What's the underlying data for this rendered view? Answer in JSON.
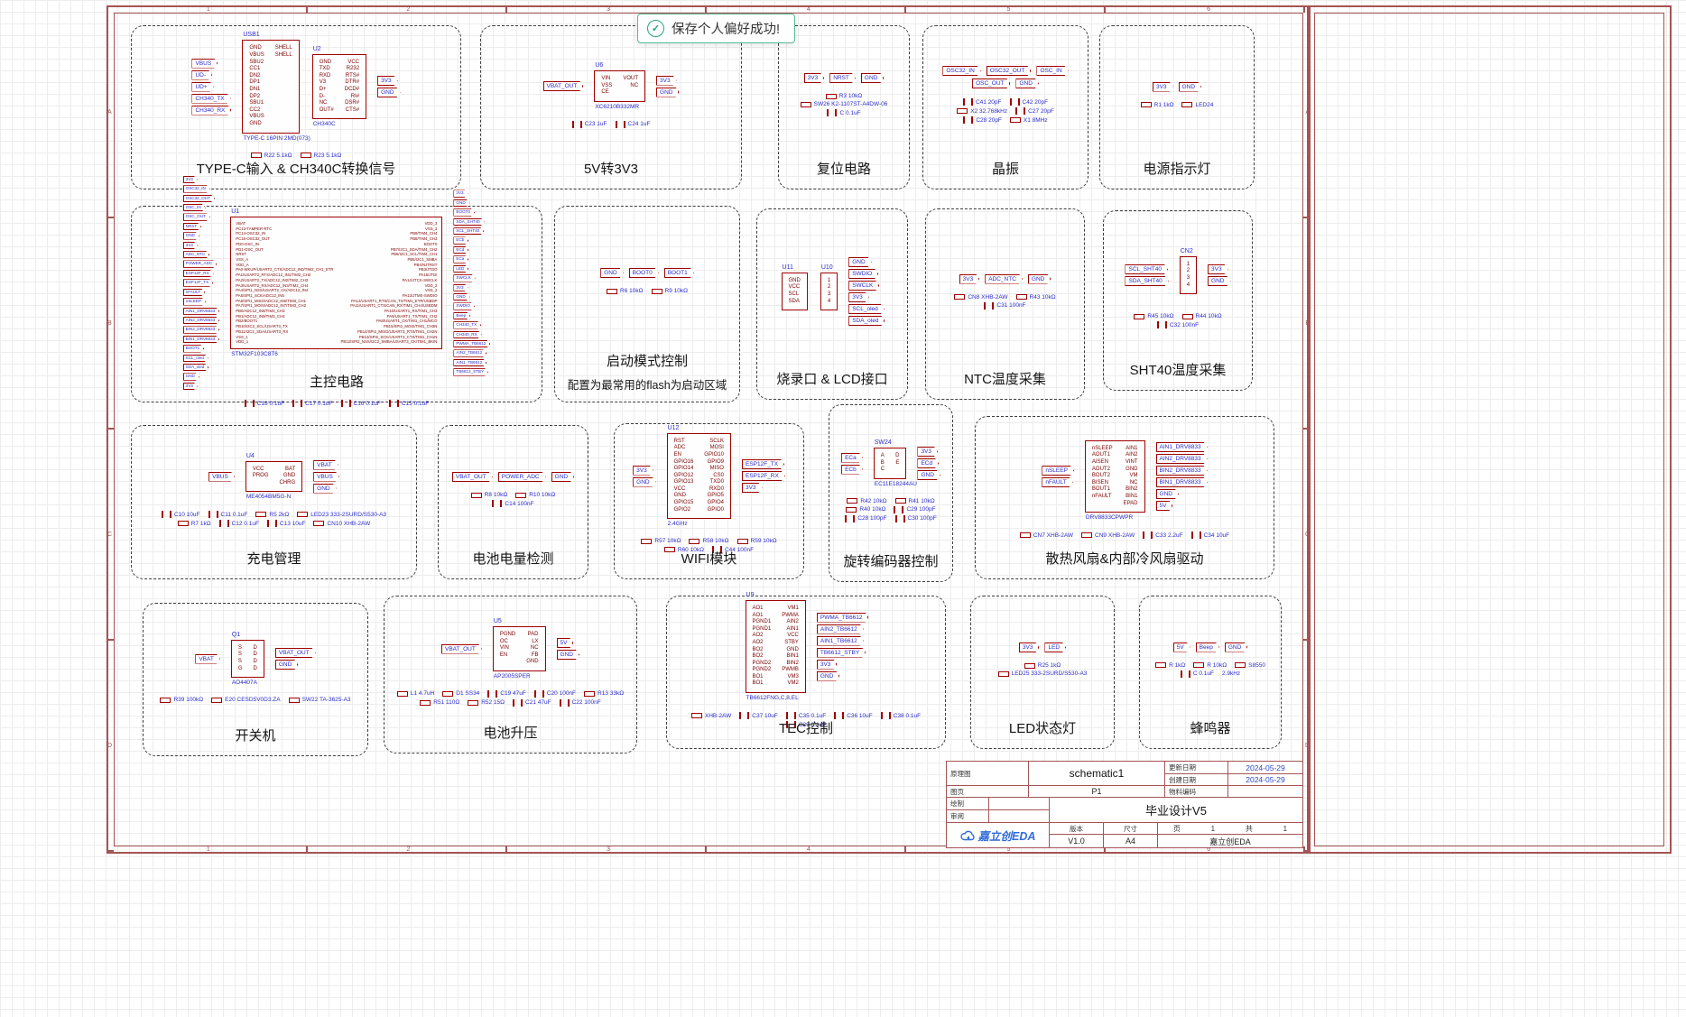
{
  "toast": {
    "message": "保存个人偏好成功!",
    "icon": "check-circle"
  },
  "colors": {
    "frame_red": "#a45454",
    "symbol_red": "#a00000",
    "pin_red": "#7b0000",
    "net_blue": "#2b2bcc",
    "wire_green": "#007a00",
    "toast_green": "#27a27f",
    "logo_blue": "#2f6bd8",
    "block_border": "#3d3d3d"
  },
  "frame": {
    "columns": [
      "1",
      "2",
      "3",
      "4",
      "5",
      "6"
    ],
    "rows": [
      "A",
      "B",
      "C",
      "D"
    ]
  },
  "title_block": {
    "schematic_label": "原理图",
    "schematic_value": "schematic1",
    "updated_label": "更新日期",
    "updated_value": "2024-05-29",
    "created_label": "创建日期",
    "created_value": "2024-05-29",
    "sheet_label": "图页",
    "sheet_value": "P1",
    "material_label": "物料编码",
    "material_value": "",
    "draw_label": "绘制",
    "draw_value": "",
    "review_label": "审阅",
    "review_value": "",
    "project_title": "毕业设计V5",
    "version_label": "版本",
    "version_value": "V1.0",
    "size_label": "尺寸",
    "size_value": "A4",
    "page_label": "页",
    "page_value": "1",
    "total_label": "共",
    "total_value": "1",
    "vendor": "嘉立创EDA",
    "logo_text": "嘉立创EDA"
  },
  "blocks": [
    {
      "id": "typec",
      "title": "TYPE-C输入 & CH340C转换信号",
      "chips": [
        {
          "refdes": "USB1",
          "part": "TYPE-C 16PIN 2MD(073)",
          "left": [
            "GND",
            "VBUS",
            "SBU2",
            "CC1",
            "DN2",
            "DP1",
            "DN1",
            "DP2",
            "SBU1",
            "CC2",
            "VBUS",
            "GND"
          ],
          "right": [
            "SHELL",
            "SHELL"
          ]
        },
        {
          "refdes": "U2",
          "part": "CH340C",
          "left": [
            "GND",
            "TXD",
            "RXD",
            "V3",
            "D+",
            "D-",
            "NC",
            "OUT#"
          ],
          "right": [
            "VCC",
            "R232",
            "RTS#",
            "DTR#",
            "DCD#",
            "RI#",
            "DSR#",
            "CTS#"
          ]
        }
      ],
      "nets_left": [
        "VBUS",
        "UD-",
        "UD+",
        "CH340_TX",
        "CH340_RX"
      ],
      "nets_right": [
        "3V3",
        "GND"
      ],
      "parts": [
        "R22 5.1kΩ",
        "R23 5.1kΩ"
      ]
    },
    {
      "id": "ldo",
      "title": "5V转3V3",
      "chips": [
        {
          "refdes": "U6",
          "part": "XC6210B332MR",
          "left": [
            "VIN",
            "VSS",
            "CE"
          ],
          "right": [
            "VOUT",
            "NC"
          ]
        }
      ],
      "nets_left": [
        "VBAT_OUT"
      ],
      "nets_right": [
        "3V3",
        "GND"
      ],
      "parts": [
        "C23 1uF",
        "C24 1uF"
      ]
    },
    {
      "id": "reset",
      "title": "复位电路",
      "chips": [],
      "nets_left": [],
      "nets_right": [
        "3V3",
        "NRST",
        "GND"
      ],
      "parts": [
        "R3 10kΩ",
        "SW26 K2-1107ST-A4DW-06",
        "C 0.1uF"
      ]
    },
    {
      "id": "xtal",
      "title": "晶振",
      "chips": [],
      "nets_left": [],
      "nets_right": [
        "OSC32_IN",
        "OSC32_OUT",
        "OSC_IN",
        "OSC_OUT",
        "GND"
      ],
      "parts": [
        "C41 20pF",
        "C42 20pF",
        "X2 32.768kHz",
        "C27 20pF",
        "C28 20pF",
        "X1 8MHz"
      ]
    },
    {
      "id": "pwrled",
      "title": "电源指示灯",
      "chips": [],
      "nets_left": [],
      "nets_right": [
        "3V3",
        "GND"
      ],
      "parts": [
        "R1 1kΩ",
        "LED24"
      ]
    },
    {
      "id": "mcu",
      "title": "主控电路",
      "chips": [
        {
          "refdes": "U1",
          "part": "STM32F103C8T6",
          "left": [
            "VBAT",
            "PC13-TAMPER-RTC",
            "PC14-OSC32_IN",
            "PC15-OSC32_OUT",
            "PD0-OSC_IN",
            "PD1-OSC_OUT",
            "NRST",
            "VSS_A",
            "VDD_A",
            "PA0-WKUP/USART2_CTS/ADC12_IN0/TIM2_CH1_ETR",
            "PA1/USART2_RTS/ADC12_IN1/TIM2_CH2",
            "PA2/USART2_TX/ADC12_IN2/TIM2_CH3",
            "PA3/USART2_RX/ADC12_IN3/TIM2_CH4",
            "PA4/SPI1_NSS/USART2_CK/ADC12_IN4",
            "PA5/SPI1_SCK/ADC12_IN5",
            "PA6/SPI1_MISO/ADC12_IN6/TIM3_CH1",
            "PA7/SPI1_MOSI/ADC12_IN7/TIM3_CH2",
            "PB0/ADC12_IN8/TIM3_CH3",
            "PB1/ADC12_IN9/TIM3_CH4",
            "PB2/BOOT1",
            "PB10/I2C2_SCL/USART3_TX",
            "PB11/I2C2_SDA/USART3_RX",
            "VSS_1",
            "VDD_1"
          ],
          "right": [
            "VDD_3",
            "VSS_3",
            "PB9/TIM4_CH4",
            "PB8/TIM4_CH3",
            "BOOT0",
            "PB7/I2C1_SDA/TIM4_CH2",
            "PB6/I2C1_SCL/TIM4_CH1",
            "PB5/I2C1_SMBA",
            "PB4/NJTRST",
            "PB3/JTDO",
            "PA15/JTDI",
            "PA14/JTCK-SWCLK",
            "VDD_2",
            "VSS_2",
            "PA13/JTMS-SWDIO",
            "PA12/USART1_RTS/CAN_TX/TIM1_ETR/USBDP",
            "PA11/USART1_CTS/CAN_RX/TIM1_CH4/USBDM",
            "PA10/USART1_RX/TIM1_CH3",
            "PA9/USART1_TX/TIM1_CH2",
            "PA8/USART1_CK/TIM1_CH1/MCO",
            "PB15/SPI2_MOSI/TIM1_CH3N",
            "PB14/SPI2_MISO/USART3_RTS/TIM1_CH2N",
            "PB13/SPI2_SCK/USART3_CTS/TIM1_CH1N",
            "PB12/SPI2_NSS/I2C2_SMBA/USART3_CK/TIM1_BKIN"
          ]
        }
      ],
      "nets_left": [
        "3V3",
        "OSC32_IN",
        "OSC32_OUT",
        "OSC_IN",
        "OSC_OUT",
        "NRST",
        "GND",
        "3V3",
        "ADC_NTC",
        "POWER_ADC",
        "ESP12F_RX",
        "ESP12F_TX",
        "nFAULT",
        "nSLEEP",
        "AIN1_DRV8833",
        "AIN2_DRV8833",
        "BIN2_DRV8833",
        "BIN1_DRV8833",
        "BOOT1",
        "SCL_oled",
        "SDA_oled",
        "GND",
        "3V3"
      ],
      "nets_right": [
        "3V3",
        "GND",
        "BOOT0",
        "SDA_SHT40",
        "SCL_SHT40",
        "ECb",
        "ECd",
        "ECa",
        "LED",
        "SWCLK",
        "3V3",
        "GND",
        "SWDIO",
        "Beep",
        "CH340_TX",
        "CH340_RX",
        "PWMA_TB6612",
        "AIN2_TB6612",
        "AIN1_TB6612",
        "TB6612_STBY"
      ],
      "parts": [
        "C18 0.1uF",
        "C17 0.1uF",
        "C16 0.1uF",
        "C15 0.1uF"
      ]
    },
    {
      "id": "boot",
      "title": "启动模式控制",
      "subtitle": "配置为最常用的flash为启动区域",
      "chips": [],
      "nets_left": [],
      "nets_right": [
        "GND",
        "BOOT0",
        "BOOT1"
      ],
      "parts": [
        "R6 10kΩ",
        "R9 10kΩ"
      ]
    },
    {
      "id": "prog",
      "title": "烧录口 & LCD接口",
      "chips": [
        {
          "refdes": "U11",
          "part": "",
          "left": [
            "GND",
            "VCC",
            "SCL",
            "SDA"
          ],
          "right": []
        },
        {
          "refdes": "U10",
          "part": "",
          "left": [
            "1",
            "2",
            "3",
            "4"
          ],
          "right": []
        }
      ],
      "nets_left": [],
      "nets_right": [
        "GND",
        "SWDIO",
        "SWCLK",
        "3V3",
        "SCL_oled",
        "SDA_oled"
      ],
      "parts": []
    },
    {
      "id": "ntc",
      "title": "NTC温度采集",
      "chips": [],
      "nets_left": [],
      "nets_right": [
        "3V3",
        "ADC_NTC",
        "GND"
      ],
      "parts": [
        "CN8 XHB-2AW",
        "R43 10kΩ",
        "C31 100nF"
      ]
    },
    {
      "id": "sht40",
      "title": "SHT40温度采集",
      "chips": [
        {
          "refdes": "CN2",
          "part": "",
          "left": [
            "1",
            "2",
            "3",
            "4"
          ],
          "right": []
        }
      ],
      "nets_left": [
        "SCL_SHT40",
        "SDA_SHT40"
      ],
      "nets_right": [
        "3V3",
        "GND"
      ],
      "parts": [
        "R45 10kΩ",
        "R44 10kΩ",
        "C32 100nF"
      ]
    },
    {
      "id": "charge",
      "title": "充电管理",
      "chips": [
        {
          "refdes": "U4",
          "part": "ME4054BM5G-N",
          "left": [
            "VCC",
            "PROG"
          ],
          "right": [
            "BAT",
            "GND",
            "CHRG"
          ]
        }
      ],
      "nets_left": [
        "VBUS"
      ],
      "nets_right": [
        "VBAT",
        "VBUS",
        "GND"
      ],
      "parts": [
        "C10 10uF",
        "C11 0.1uF",
        "R5 2kΩ",
        "LED23 333-2SURD/S530-A3",
        "R7 1kΩ",
        "C12 0.1uF",
        "C13 10uF",
        "CN10 XHB-2AW"
      ]
    },
    {
      "id": "battsense",
      "title": "电池电量检测",
      "chips": [],
      "nets_left": [],
      "nets_right": [
        "VBAT_OUT",
        "POWER_ADC",
        "GND"
      ],
      "parts": [
        "R8 10kΩ",
        "R10 10kΩ",
        "C14 100nF"
      ]
    },
    {
      "id": "wifi",
      "title": "WIFI模块",
      "chips": [
        {
          "refdes": "U12",
          "part": "2.4GHz",
          "left": [
            "RST",
            "ADC",
            "EN",
            "GPIO16",
            "GPIO14",
            "GPIO12",
            "GPIO13",
            "VCC",
            "GND",
            "GPIO15",
            "GPIO2"
          ],
          "right": [
            "SCLK",
            "MOSI",
            "GPIO10",
            "GPIO9",
            "MISO",
            "CS0",
            "TXD0",
            "RXD0",
            "GPIO5",
            "GPIO4",
            "GPIO0"
          ]
        }
      ],
      "nets_left": [
        "3V3",
        "GND"
      ],
      "nets_right": [
        "ESP12F_TX",
        "ESP12F_RX",
        "3V3"
      ],
      "parts": [
        "R57 10kΩ",
        "R58 10kΩ",
        "R59 10kΩ",
        "R60 10kΩ",
        "C44 100nF"
      ]
    },
    {
      "id": "encoder",
      "title": "旋转编码器控制",
      "chips": [
        {
          "refdes": "SW24",
          "part": "EC11E18244AU",
          "left": [
            "A",
            "B",
            "C"
          ],
          "right": [
            "D",
            "E"
          ]
        }
      ],
      "nets_left": [
        "ECa",
        "ECb"
      ],
      "nets_right": [
        "3V3",
        "ECd",
        "GND"
      ],
      "parts": [
        "R42 10kΩ",
        "R41 10kΩ",
        "R40 10kΩ",
        "C29 100pF",
        "C28 100pF",
        "C30 100pF"
      ]
    },
    {
      "id": "fans",
      "title": "散热风扇&内部冷风扇驱动",
      "chips": [
        {
          "refdes": "",
          "part": "DRV8833CPWPR",
          "left": [
            "nSLEEP",
            "AOUT1",
            "AISEN",
            "AOUT2",
            "BOUT2",
            "BISEN",
            "BOUT1",
            "nFAULT"
          ],
          "right": [
            "AIN1",
            "AIN2",
            "VINT",
            "GND",
            "VM",
            "NC",
            "BIN2",
            "BIN1",
            "EPAD"
          ]
        }
      ],
      "nets_left": [
        "nSLEEP",
        "nFAULT"
      ],
      "nets_right": [
        "AIN1_DRV8833",
        "AIN2_DRV8833",
        "BIN2_DRV8833",
        "BIN1_DRV8833",
        "GND",
        "5V"
      ],
      "parts": [
        "CN7 XHB-2AW",
        "CN9 XHB-2AW",
        "C33 2.2uF",
        "C34 10uF"
      ]
    },
    {
      "id": "onoff",
      "title": "开关机",
      "chips": [
        {
          "refdes": "Q1",
          "part": "AO4407A",
          "left": [
            "S",
            "S",
            "S",
            "G"
          ],
          "right": [
            "D",
            "D",
            "D",
            "D"
          ]
        }
      ],
      "nets_left": [
        "VBAT"
      ],
      "nets_right": [
        "VBAT_OUT",
        "GND"
      ],
      "parts": [
        "R39 100kΩ",
        "E20 CESD5V0D3.ZA",
        "SW22 TA-3625-A3"
      ]
    },
    {
      "id": "boost",
      "title": "电池升压",
      "chips": [
        {
          "refdes": "U5",
          "part": "AP2005SPER",
          "left": [
            "PGND",
            "OC",
            "VIN",
            "EN"
          ],
          "right": [
            "PAD",
            "LX",
            "NC",
            "FB",
            "GND"
          ]
        }
      ],
      "nets_left": [
        "VBAT_OUT"
      ],
      "nets_right": [
        "5V",
        "GND"
      ],
      "parts": [
        "L1 4.7uH",
        "D1 SS34",
        "C19 47uF",
        "C20 100nF",
        "R13 33kΩ",
        "R51 110Ω",
        "R52 15Ω",
        "C21 47uF",
        "C22 100nF"
      ]
    },
    {
      "id": "tec",
      "title": "TEC控制",
      "chips": [
        {
          "refdes": "U9",
          "part": "TB6612FNG,C,8,EL",
          "left": [
            "AO1",
            "AO1",
            "PGND1",
            "PGND1",
            "AO2",
            "AO2",
            "BO2",
            "BO2",
            "PGND2",
            "PGND2",
            "BO1",
            "BO1"
          ],
          "right": [
            "VM1",
            "PWMA",
            "AIN2",
            "AIN1",
            "VCC",
            "STBY",
            "GND",
            "BIN1",
            "BIN2",
            "PWMB",
            "VM3",
            "VM2"
          ]
        }
      ],
      "nets_left": [],
      "nets_right": [
        "PWMA_TB6612",
        "AIN2_TB6612",
        "AIN1_TB6612",
        "TB6612_STBY",
        "3V3",
        "GND"
      ],
      "parts": [
        "XHB-2AW",
        "C37 10uF",
        "C35 0.1uF",
        "C36 10uF",
        "C38 0.1uF",
        "C39 0.1uF"
      ]
    },
    {
      "id": "statusled",
      "title": "LED状态灯",
      "chips": [],
      "nets_left": [],
      "nets_right": [
        "3V3",
        "LED"
      ],
      "parts": [
        "R25 1kΩ",
        "LED25 333-2SURD/S530-A3"
      ]
    },
    {
      "id": "buzzer",
      "title": "蜂鸣器",
      "chips": [],
      "nets_left": [],
      "nets_right": [
        "5V",
        "Beep",
        "GND"
      ],
      "parts": [
        "R 1kΩ",
        "R 10kΩ",
        "S8550",
        "C 0.1uF"
      ],
      "annotations": [
        "2.9kHz"
      ]
    }
  ]
}
